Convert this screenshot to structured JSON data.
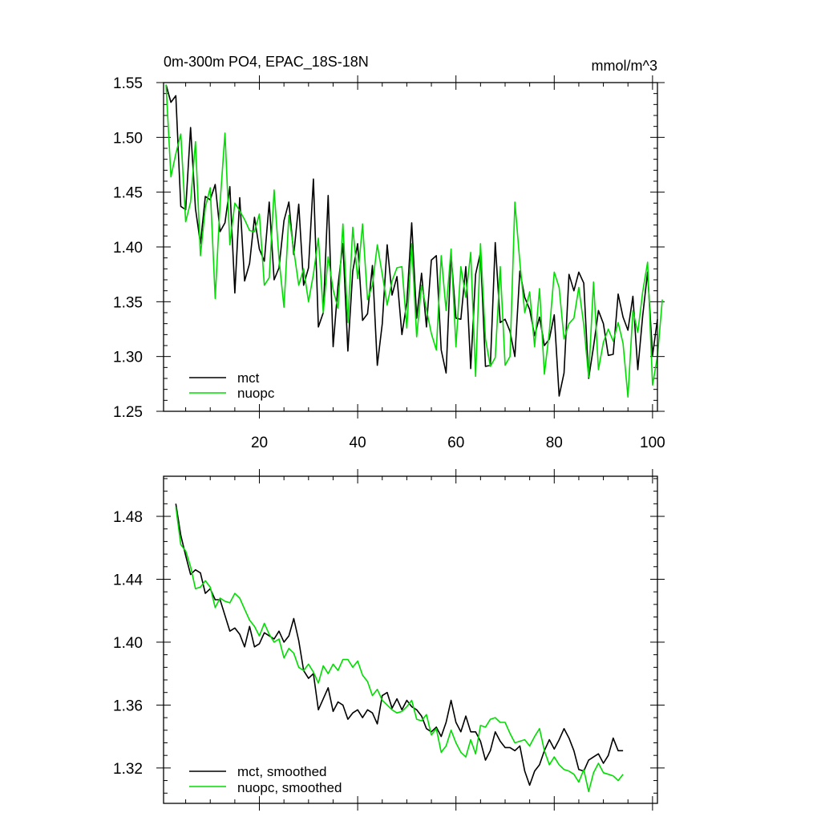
{
  "chart_data": [
    {
      "type": "line",
      "title": "0m-300m PO4, EPAC_18S-18N",
      "units": "mmol/m^3",
      "xlabel": "",
      "ylabel": "",
      "xlim": [
        0.5,
        101
      ],
      "ylim": [
        1.25,
        1.55
      ],
      "xticks": [
        20,
        40,
        60,
        80,
        100
      ],
      "xtick_labels": [
        "20",
        "40",
        "60",
        "80",
        "100"
      ],
      "yticks": [
        1.25,
        1.3,
        1.35,
        1.4,
        1.45,
        1.5,
        1.55
      ],
      "ytick_labels": [
        "1.25",
        "1.30",
        "1.35",
        "1.40",
        "1.45",
        "1.50",
        "1.55"
      ],
      "legend_position": "bottom-left",
      "series": [
        {
          "name": "mct",
          "color": "#000000",
          "x_start": 1,
          "values": [
            1.548,
            1.532,
            1.538,
            1.437,
            1.434,
            1.509,
            1.435,
            1.403,
            1.446,
            1.443,
            1.457,
            1.414,
            1.422,
            1.455,
            1.358,
            1.445,
            1.369,
            1.385,
            1.427,
            1.398,
            1.387,
            1.441,
            1.37,
            1.381,
            1.424,
            1.441,
            1.393,
            1.439,
            1.365,
            1.381,
            1.462,
            1.327,
            1.34,
            1.447,
            1.309,
            1.365,
            1.403,
            1.305,
            1.378,
            1.403,
            1.333,
            1.339,
            1.383,
            1.292,
            1.33,
            1.402,
            1.356,
            1.373,
            1.32,
            1.349,
            1.422,
            1.335,
            1.376,
            1.327,
            1.388,
            1.392,
            1.306,
            1.285,
            1.393,
            1.335,
            1.334,
            1.382,
            1.289,
            1.375,
            1.395,
            1.291,
            1.292,
            1.404,
            1.331,
            1.334,
            1.323,
            1.3,
            1.378,
            1.354,
            1.343,
            1.319,
            1.336,
            1.31,
            1.316,
            1.338,
            1.264,
            1.285,
            1.375,
            1.36,
            1.377,
            1.367,
            1.28,
            1.309,
            1.342,
            1.33,
            1.301,
            1.302,
            1.357,
            1.336,
            1.324,
            1.355,
            1.288,
            1.337,
            1.377,
            1.301,
            1.334
          ]
        },
        {
          "name": "nuopc",
          "color": "#00dd00",
          "x_start": 1,
          "values": [
            1.548,
            1.464,
            1.485,
            1.503,
            1.423,
            1.441,
            1.496,
            1.392,
            1.436,
            1.454,
            1.353,
            1.44,
            1.504,
            1.402,
            1.44,
            1.433,
            1.425,
            1.415,
            1.414,
            1.43,
            1.365,
            1.372,
            1.452,
            1.389,
            1.345,
            1.429,
            1.397,
            1.365,
            1.38,
            1.35,
            1.375,
            1.408,
            1.34,
            1.391,
            1.361,
            1.344,
            1.421,
            1.331,
            1.418,
            1.371,
            1.421,
            1.352,
            1.365,
            1.402,
            1.375,
            1.347,
            1.369,
            1.381,
            1.382,
            1.326,
            1.403,
            1.318,
            1.365,
            1.343,
            1.321,
            1.306,
            1.392,
            1.342,
            1.398,
            1.309,
            1.382,
            1.354,
            1.395,
            1.282,
            1.403,
            1.316,
            1.291,
            1.299,
            1.382,
            1.292,
            1.3,
            1.441,
            1.386,
            1.34,
            1.359,
            1.309,
            1.362,
            1.284,
            1.323,
            1.377,
            1.363,
            1.316,
            1.33,
            1.335,
            1.363,
            1.329,
            1.281,
            1.368,
            1.288,
            1.313,
            1.325,
            1.314,
            1.331,
            1.312,
            1.263,
            1.342,
            1.322,
            1.359,
            1.386,
            1.274,
            1.3,
            1.352
          ]
        }
      ]
    },
    {
      "type": "line",
      "title": "",
      "xlabel": "",
      "ylabel": "",
      "xlim": [
        0.5,
        101
      ],
      "ylim": [
        1.2975,
        1.5055
      ],
      "xticks": [
        20,
        40,
        60,
        80,
        100
      ],
      "yticks": [
        1.32,
        1.36,
        1.4,
        1.44,
        1.48
      ],
      "ytick_labels": [
        "1.32",
        "1.36",
        "1.40",
        "1.44",
        "1.48"
      ],
      "legend_position": "bottom-left",
      "series": [
        {
          "name": "mct, smoothed",
          "color": "#000000",
          "x_start": 3,
          "values": [
            1.488,
            1.468,
            1.455,
            1.443,
            1.446,
            1.444,
            1.431,
            1.434,
            1.427,
            1.427,
            1.417,
            1.407,
            1.409,
            1.405,
            1.397,
            1.41,
            1.397,
            1.399,
            1.406,
            1.404,
            1.402,
            1.407,
            1.4,
            1.404,
            1.415,
            1.401,
            1.382,
            1.377,
            1.38,
            1.357,
            1.364,
            1.371,
            1.356,
            1.362,
            1.36,
            1.351,
            1.355,
            1.357,
            1.352,
            1.357,
            1.355,
            1.348,
            1.366,
            1.368,
            1.358,
            1.364,
            1.357,
            1.363,
            1.359,
            1.357,
            1.353,
            1.345,
            1.343,
            1.346,
            1.34,
            1.349,
            1.363,
            1.349,
            1.343,
            1.353,
            1.343,
            1.343,
            1.337,
            1.325,
            1.331,
            1.343,
            1.337,
            1.333,
            1.333,
            1.331,
            1.334,
            1.318,
            1.309,
            1.318,
            1.322,
            1.331,
            1.338,
            1.332,
            1.338,
            1.345,
            1.339,
            1.331,
            1.319,
            1.318,
            1.325,
            1.327,
            1.329,
            1.323,
            1.328,
            1.339,
            1.331,
            1.331
          ]
        },
        {
          "name": "nuopc, smoothed",
          "color": "#00dd00",
          "x_start": 3,
          "values": [
            1.486,
            1.462,
            1.458,
            1.448,
            1.434,
            1.435,
            1.439,
            1.435,
            1.422,
            1.428,
            1.426,
            1.425,
            1.431,
            1.428,
            1.421,
            1.414,
            1.41,
            1.404,
            1.412,
            1.405,
            1.4,
            1.402,
            1.39,
            1.396,
            1.393,
            1.384,
            1.382,
            1.386,
            1.381,
            1.374,
            1.385,
            1.38,
            1.386,
            1.382,
            1.389,
            1.389,
            1.384,
            1.388,
            1.379,
            1.375,
            1.366,
            1.37,
            1.363,
            1.36,
            1.357,
            1.355,
            1.356,
            1.359,
            1.363,
            1.351,
            1.35,
            1.354,
            1.341,
            1.345,
            1.33,
            1.334,
            1.344,
            1.336,
            1.33,
            1.327,
            1.338,
            1.329,
            1.347,
            1.346,
            1.351,
            1.352,
            1.349,
            1.349,
            1.342,
            1.336,
            1.337,
            1.338,
            1.334,
            1.34,
            1.345,
            1.331,
            1.322,
            1.327,
            1.322,
            1.319,
            1.318,
            1.316,
            1.311,
            1.319,
            1.305,
            1.317,
            1.323,
            1.317,
            1.316,
            1.315,
            1.312,
            1.316
          ]
        }
      ]
    }
  ]
}
